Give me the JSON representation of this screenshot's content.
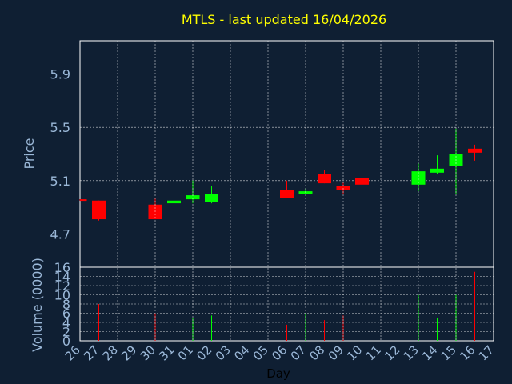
{
  "chart_data": {
    "type": "candlestick",
    "title": "MTLS - last updated 16/04/2026",
    "xlabel": "Day",
    "price_panel": {
      "ylabel": "Price",
      "ylim": [
        4.45,
        6.15
      ],
      "yticks": [
        4.7,
        5.1,
        5.5,
        5.9
      ],
      "grid": true
    },
    "volume_panel": {
      "ylabel": "Volume (0000)",
      "ylim": [
        0,
        16
      ],
      "yticks": [
        0,
        2,
        4,
        6,
        8,
        10,
        12,
        14,
        16
      ],
      "grid": true
    },
    "x_tick_labels": [
      "26",
      "27",
      "28",
      "29",
      "30",
      "31",
      "01",
      "02",
      "03",
      "04",
      "05",
      "06",
      "07",
      "08",
      "09",
      "10",
      "11",
      "12",
      "13",
      "14",
      "15",
      "16",
      "17"
    ],
    "candles": [
      {
        "day": "26",
        "open": 4.96,
        "close": 4.95,
        "high": 4.96,
        "low": 4.95,
        "volume": 0
      },
      {
        "day": "27",
        "open": 4.95,
        "close": 4.81,
        "high": 4.95,
        "low": 4.8,
        "volume": 8
      },
      {
        "day": "30",
        "open": 4.92,
        "close": 4.81,
        "high": 4.97,
        "low": 4.81,
        "volume": 6
      },
      {
        "day": "31",
        "open": 4.93,
        "close": 4.95,
        "high": 4.99,
        "low": 4.87,
        "volume": 7.5
      },
      {
        "day": "01",
        "open": 4.96,
        "close": 4.99,
        "high": 5.1,
        "low": 4.93,
        "volume": 5
      },
      {
        "day": "02",
        "open": 4.94,
        "close": 5.0,
        "high": 5.06,
        "low": 4.93,
        "volume": 5.5
      },
      {
        "day": "06",
        "open": 5.03,
        "close": 4.97,
        "high": 5.1,
        "low": 4.97,
        "volume": 3.5
      },
      {
        "day": "07",
        "open": 5.0,
        "close": 5.02,
        "high": 5.04,
        "low": 5.0,
        "volume": 6
      },
      {
        "day": "08",
        "open": 5.15,
        "close": 5.08,
        "high": 5.18,
        "low": 5.08,
        "volume": 4.5
      },
      {
        "day": "09",
        "open": 5.06,
        "close": 5.03,
        "high": 5.09,
        "low": 5.0,
        "volume": 5.5
      },
      {
        "day": "10",
        "open": 5.12,
        "close": 5.07,
        "high": 5.14,
        "low": 5.01,
        "volume": 6.5
      },
      {
        "day": "13",
        "open": 5.07,
        "close": 5.17,
        "high": 5.23,
        "low": 5.02,
        "volume": 10
      },
      {
        "day": "14",
        "open": 5.16,
        "close": 5.19,
        "high": 5.29,
        "low": 5.15,
        "volume": 5
      },
      {
        "day": "15",
        "open": 5.21,
        "close": 5.3,
        "high": 5.49,
        "low": 5.0,
        "volume": 10
      },
      {
        "day": "16",
        "open": 5.34,
        "close": 5.31,
        "high": 5.37,
        "low": 5.25,
        "volume": 15
      }
    ],
    "colors": {
      "background": "#0f1f33",
      "text": "#9bb8d8",
      "title": "#ffff00",
      "grid": "#ffffff",
      "up": "#00ff00",
      "down": "#ff0000"
    }
  }
}
